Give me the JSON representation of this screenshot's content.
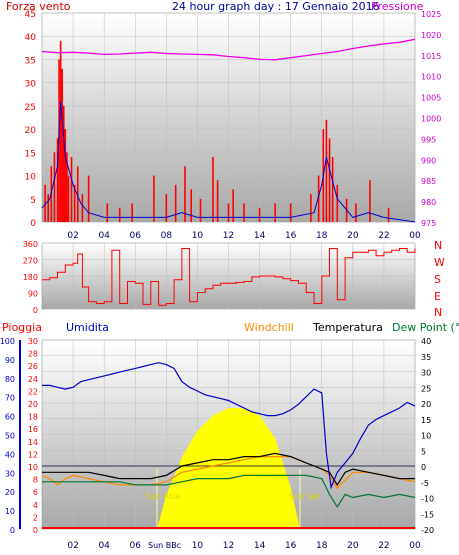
{
  "header": {
    "left_title": "Forza vento",
    "center_title": "24 hour graph day : 17 Gennaio 2016",
    "right_title": "Pressione"
  },
  "colors": {
    "wind": "#ff0000",
    "gust": "#cc0000",
    "pressure": "#ee00ee",
    "direction": "#ff0000",
    "rain": "#ff0000",
    "humidity": "#0000cc",
    "windchill": "#ff8800",
    "temperature": "#000000",
    "dewpoint": "#007733",
    "solar": "#ffff00",
    "axis_green": "#009900",
    "axis_blue": "#0000cc",
    "axis_red": "#ff0000",
    "pressure_axis": "#cc00cc"
  },
  "labels": {
    "pioggia": "Pioggia",
    "umidita": "Umidita",
    "windchill": "Windchill",
    "temperatura": "Temperatura",
    "dewpoint": "Dew Point (°C",
    "sunrise": "Sun Rise",
    "sunset": "Sun Set",
    "sunbbc": "Sun BBc",
    "dir_letters": [
      "N",
      "W",
      "S",
      "E",
      "N"
    ]
  },
  "chart_data": [
    {
      "type": "line",
      "name": "wind-pressure",
      "x_ticks": [
        "02",
        "04",
        "06",
        "08",
        "10",
        "12",
        "14",
        "16",
        "18",
        "20",
        "22",
        "00"
      ],
      "ylim_left": [
        0,
        45
      ],
      "yticks_left": [
        0,
        5,
        10,
        15,
        20,
        25,
        30,
        35,
        40,
        45
      ],
      "ylim_right": [
        975,
        1025
      ],
      "yticks_right": [
        975,
        980,
        985,
        990,
        995,
        1000,
        1005,
        1010,
        1015,
        1020,
        1025
      ],
      "pressure": {
        "x": [
          0,
          1,
          2,
          3,
          4,
          5,
          6,
          7,
          8,
          9,
          10,
          11,
          12,
          13,
          14,
          15,
          16,
          17,
          18,
          19,
          20,
          21,
          22,
          23,
          24
        ],
        "y": [
          1015.8,
          1015.5,
          1015.6,
          1015.4,
          1015.1,
          1015.2,
          1015.4,
          1015.6,
          1015.3,
          1015.2,
          1015.1,
          1015.0,
          1014.6,
          1014.3,
          1013.9,
          1013.8,
          1014.3,
          1014.8,
          1015.3,
          1015.8,
          1016.5,
          1017.1,
          1017.6,
          1018.0,
          1018.7
        ]
      },
      "wind_peaks": [
        {
          "x": 0.2,
          "y": 8
        },
        {
          "x": 0.4,
          "y": 6
        },
        {
          "x": 0.6,
          "y": 12
        },
        {
          "x": 0.8,
          "y": 15
        },
        {
          "x": 1.0,
          "y": 18
        },
        {
          "x": 1.1,
          "y": 35
        },
        {
          "x": 1.2,
          "y": 39
        },
        {
          "x": 1.3,
          "y": 33
        },
        {
          "x": 1.4,
          "y": 25
        },
        {
          "x": 1.5,
          "y": 20
        },
        {
          "x": 1.6,
          "y": 15
        },
        {
          "x": 1.7,
          "y": 10
        },
        {
          "x": 1.9,
          "y": 14
        },
        {
          "x": 2.1,
          "y": 8
        },
        {
          "x": 2.3,
          "y": 12
        },
        {
          "x": 2.6,
          "y": 6
        },
        {
          "x": 3.0,
          "y": 10
        },
        {
          "x": 4.2,
          "y": 4
        },
        {
          "x": 5.0,
          "y": 3
        },
        {
          "x": 5.8,
          "y": 4
        },
        {
          "x": 7.2,
          "y": 10
        },
        {
          "x": 8.0,
          "y": 6
        },
        {
          "x": 8.6,
          "y": 8
        },
        {
          "x": 9.2,
          "y": 12
        },
        {
          "x": 9.6,
          "y": 7
        },
        {
          "x": 10.2,
          "y": 5
        },
        {
          "x": 11.0,
          "y": 14
        },
        {
          "x": 11.3,
          "y": 9
        },
        {
          "x": 12.0,
          "y": 4
        },
        {
          "x": 12.3,
          "y": 7
        },
        {
          "x": 13.0,
          "y": 4
        },
        {
          "x": 14.0,
          "y": 3
        },
        {
          "x": 15.0,
          "y": 4
        },
        {
          "x": 16.0,
          "y": 4
        },
        {
          "x": 17.3,
          "y": 6
        },
        {
          "x": 17.8,
          "y": 10
        },
        {
          "x": 18.1,
          "y": 20
        },
        {
          "x": 18.3,
          "y": 22
        },
        {
          "x": 18.5,
          "y": 18
        },
        {
          "x": 18.7,
          "y": 14
        },
        {
          "x": 19.0,
          "y": 8
        },
        {
          "x": 19.6,
          "y": 5
        },
        {
          "x": 20.2,
          "y": 4
        },
        {
          "x": 21.1,
          "y": 9
        },
        {
          "x": 22.3,
          "y": 3
        }
      ],
      "avg_wind": {
        "x": [
          0,
          0.5,
          1.0,
          1.2,
          1.5,
          2.0,
          2.5,
          3.0,
          4.0,
          8.0,
          9.0,
          10.0,
          12.0,
          16.0,
          17.5,
          18.0,
          18.3,
          18.6,
          19.0,
          19.5,
          20.0,
          21.0,
          22.0,
          24.0
        ],
        "y": [
          3,
          5,
          12,
          26,
          14,
          8,
          4,
          2,
          1,
          1,
          2,
          1,
          1,
          1,
          2,
          8,
          14,
          10,
          5,
          3,
          1,
          2,
          1,
          0
        ]
      }
    },
    {
      "type": "line",
      "name": "wind-direction",
      "ylim": [
        0,
        360
      ],
      "yticks": [
        0,
        90,
        180,
        270,
        360
      ],
      "x": [
        0,
        0.5,
        1.0,
        1.5,
        2.0,
        2.3,
        2.6,
        3.0,
        3.5,
        4.0,
        4.5,
        5.0,
        5.5,
        6.0,
        6.5,
        7.0,
        7.5,
        8.0,
        8.5,
        9.0,
        9.5,
        10.0,
        10.5,
        11.0,
        11.5,
        12.0,
        12.5,
        13.0,
        13.5,
        14.0,
        14.5,
        15.0,
        15.5,
        16.0,
        16.5,
        17.0,
        17.5,
        18.0,
        18.5,
        19.0,
        19.5,
        20.0,
        20.5,
        21.0,
        21.5,
        22.0,
        22.5,
        23.0,
        23.5,
        24.0
      ],
      "y": [
        160,
        170,
        200,
        240,
        250,
        300,
        120,
        40,
        30,
        40,
        320,
        30,
        150,
        140,
        25,
        150,
        20,
        30,
        160,
        330,
        40,
        90,
        110,
        130,
        140,
        140,
        145,
        150,
        175,
        180,
        180,
        175,
        165,
        155,
        140,
        90,
        30,
        180,
        330,
        50,
        280,
        310,
        310,
        320,
        290,
        310,
        320,
        330,
        310,
        330
      ]
    },
    {
      "type": "line",
      "name": "temperature-humidity",
      "ylim_pct": [
        0,
        100
      ],
      "yticks_pct": [
        0,
        10,
        20,
        30,
        40,
        50,
        60,
        70,
        80,
        90,
        100
      ],
      "ylim_temp_left": [
        0,
        30
      ],
      "yticks_temp_left": [
        0,
        2,
        4,
        6,
        8,
        10,
        12,
        14,
        16,
        18,
        20,
        22,
        24,
        26,
        28,
        30
      ],
      "ylim_temp_right": [
        -20,
        40
      ],
      "yticks_temp_right": [
        -20,
        -15,
        -10,
        -5,
        0,
        5,
        10,
        15,
        20,
        25,
        30,
        35,
        40
      ],
      "humidity": {
        "x": [
          0,
          0.5,
          1.0,
          1.5,
          2.0,
          2.5,
          3.0,
          3.5,
          4.0,
          4.5,
          5.0,
          5.5,
          6.0,
          6.5,
          7.0,
          7.5,
          8.0,
          8.5,
          9.0,
          9.5,
          10.0,
          10.5,
          11.0,
          11.5,
          12.0,
          12.5,
          13.0,
          13.5,
          14.0,
          14.5,
          15.0,
          15.5,
          16.0,
          16.5,
          17.0,
          17.5,
          18.0,
          18.3,
          18.6,
          19.0,
          19.5,
          20.0,
          20.5,
          21.0,
          21.5,
          22.0,
          22.5,
          23.0,
          23.5,
          24.0
        ],
        "y": [
          76,
          76,
          75,
          74,
          75,
          78,
          79,
          80,
          81,
          82,
          83,
          84,
          85,
          86,
          87,
          88,
          87,
          85,
          78,
          75,
          73,
          71,
          70,
          69,
          68,
          66,
          64,
          62,
          61,
          60,
          60,
          61,
          63,
          66,
          70,
          74,
          72,
          40,
          22,
          30,
          35,
          40,
          48,
          55,
          58,
          60,
          62,
          64,
          67,
          65
        ]
      },
      "temperature": {
        "x": [
          0,
          1,
          2,
          3,
          4,
          5,
          6,
          7,
          8,
          9,
          10,
          11,
          12,
          13,
          14,
          15,
          16,
          17,
          18,
          18.5,
          19,
          19.5,
          20,
          21,
          22,
          23,
          24
        ],
        "y": [
          -2,
          -2,
          -2,
          -2,
          -3,
          -4,
          -4,
          -4,
          -3,
          0,
          1,
          2,
          2,
          3,
          3,
          4,
          3,
          1,
          -1,
          -2,
          -6,
          -2,
          -1,
          -2,
          -3,
          -4,
          -4
        ]
      },
      "windchill": {
        "x": [
          0,
          0.5,
          1.0,
          1.5,
          2.0,
          3.0,
          4.0,
          5.0,
          6.0,
          7.0,
          8.0,
          9.0,
          10.0,
          11.0,
          12.0,
          13.0,
          14.0,
          15.0,
          16.0,
          17.0,
          18.0,
          18.5,
          19.0,
          20.0,
          21.0,
          22.0,
          23.0,
          24.0
        ],
        "y": [
          -3,
          -4,
          -6,
          -4,
          -3,
          -4,
          -5,
          -6,
          -6,
          -6,
          -5,
          -2,
          -1,
          0,
          1,
          2,
          3,
          3,
          3,
          1,
          -1,
          -3,
          -7,
          -2,
          -2,
          -3,
          -4,
          -5
        ]
      },
      "dewpoint": {
        "x": [
          0,
          1,
          2,
          3,
          4,
          5,
          6,
          7,
          8,
          9,
          10,
          11,
          12,
          13,
          14,
          15,
          16,
          17,
          18,
          18.5,
          19,
          19.5,
          20,
          21,
          22,
          23,
          24
        ],
        "y": [
          -5,
          -5,
          -5,
          -5,
          -5,
          -5,
          -6,
          -6,
          -6,
          -5,
          -4,
          -4,
          -4,
          -3,
          -3,
          -3,
          -3,
          -3,
          -4,
          -9,
          -13,
          -9,
          -10,
          -9,
          -10,
          -9,
          -10
        ]
      },
      "solar": {
        "x": [
          7.4,
          8,
          9,
          10,
          11,
          12,
          13,
          14,
          15,
          16,
          16.6
        ],
        "y": [
          0,
          18,
          38,
          52,
          60,
          64,
          64,
          60,
          48,
          22,
          0
        ]
      },
      "sunrise_x": 7.4,
      "sunset_x": 16.6
    }
  ]
}
